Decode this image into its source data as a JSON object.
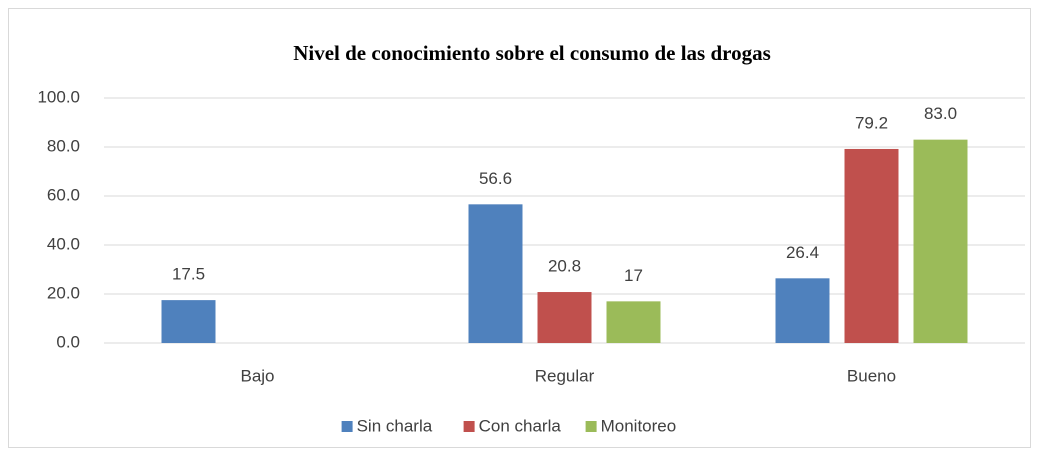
{
  "chart_data": {
    "type": "bar",
    "title": "Nivel de conocimiento sobre el consumo de las drogas",
    "categories": [
      "Bajo",
      "Regular",
      "Bueno"
    ],
    "series": [
      {
        "name": "Sin charla",
        "color": "#4f81bd",
        "values": [
          17.5,
          56.6,
          26.4
        ],
        "value_labels": [
          "17.5",
          "56.6",
          "26.4"
        ]
      },
      {
        "name": "Con charla",
        "color": "#c0504d",
        "values": [
          null,
          20.8,
          79.2
        ],
        "value_labels": [
          null,
          "20.8",
          "79.2"
        ]
      },
      {
        "name": "Monitoreo",
        "color": "#9bbb59",
        "values": [
          null,
          17,
          83.0
        ],
        "value_labels": [
          null,
          "17",
          "83.0"
        ]
      }
    ],
    "ylim": [
      0,
      100
    ],
    "yticks": [
      {
        "value": 0,
        "label": "0.0"
      },
      {
        "value": 20,
        "label": "20.0"
      },
      {
        "value": 40,
        "label": "40.0"
      },
      {
        "value": 60,
        "label": "60.0"
      },
      {
        "value": 80,
        "label": "80.0"
      },
      {
        "value": 100,
        "label": "100.0"
      }
    ],
    "grid": true,
    "legend": "bottom"
  }
}
